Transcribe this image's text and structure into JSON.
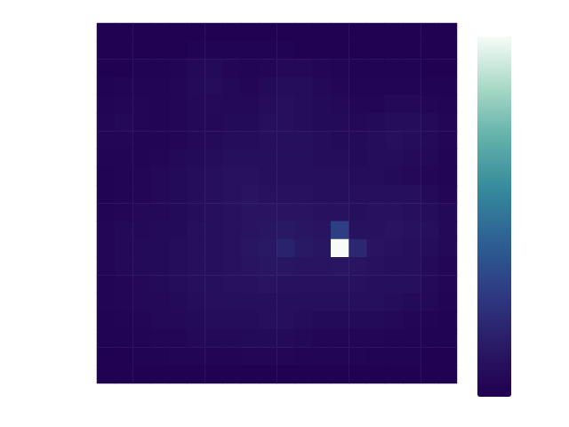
{
  "chart_data": {
    "type": "heatmap",
    "tick_labels": false,
    "color_range": [
      0,
      1
    ],
    "cells": [
      [
        0.01,
        0.01,
        0.01,
        0.01,
        0.01,
        0.01,
        0.01,
        0.01,
        0.01,
        0.01,
        0.01,
        0.01,
        0.01,
        0.01,
        0.01,
        0.01,
        0.01,
        0.01,
        0.01,
        0.01
      ],
      [
        0.01,
        0.01,
        0.01,
        0.01,
        0.01,
        0.02,
        0.02,
        0.02,
        0.02,
        0.02,
        0.02,
        0.01,
        0.01,
        0.01,
        0.01,
        0.01,
        0.01,
        0.01,
        0.01,
        0.01
      ],
      [
        0.01,
        0.01,
        0.02,
        0.02,
        0.03,
        0.05,
        0.06,
        0.04,
        0.03,
        0.04,
        0.05,
        0.05,
        0.04,
        0.03,
        0.02,
        0.02,
        0.02,
        0.02,
        0.01,
        0.01
      ],
      [
        0.02,
        0.03,
        0.03,
        0.03,
        0.04,
        0.06,
        0.07,
        0.05,
        0.04,
        0.06,
        0.07,
        0.07,
        0.05,
        0.04,
        0.03,
        0.03,
        0.03,
        0.03,
        0.02,
        0.02
      ],
      [
        0.03,
        0.04,
        0.04,
        0.03,
        0.04,
        0.05,
        0.06,
        0.05,
        0.05,
        0.07,
        0.08,
        0.07,
        0.06,
        0.05,
        0.04,
        0.04,
        0.05,
        0.05,
        0.04,
        0.03
      ],
      [
        0.04,
        0.05,
        0.04,
        0.03,
        0.04,
        0.05,
        0.05,
        0.06,
        0.06,
        0.08,
        0.08,
        0.07,
        0.06,
        0.06,
        0.05,
        0.06,
        0.07,
        0.07,
        0.06,
        0.04
      ],
      [
        0.04,
        0.04,
        0.03,
        0.03,
        0.04,
        0.05,
        0.06,
        0.07,
        0.07,
        0.08,
        0.08,
        0.08,
        0.07,
        0.06,
        0.06,
        0.07,
        0.08,
        0.07,
        0.06,
        0.04
      ],
      [
        0.03,
        0.03,
        0.03,
        0.04,
        0.05,
        0.06,
        0.07,
        0.08,
        0.09,
        0.09,
        0.08,
        0.08,
        0.07,
        0.07,
        0.06,
        0.07,
        0.07,
        0.06,
        0.05,
        0.03
      ],
      [
        0.02,
        0.03,
        0.04,
        0.05,
        0.06,
        0.07,
        0.08,
        0.1,
        0.1,
        0.09,
        0.09,
        0.09,
        0.08,
        0.08,
        0.07,
        0.07,
        0.06,
        0.05,
        0.04,
        0.03
      ],
      [
        0.02,
        0.03,
        0.04,
        0.05,
        0.06,
        0.07,
        0.09,
        0.1,
        0.11,
        0.1,
        0.1,
        0.1,
        0.09,
        0.09,
        0.08,
        0.08,
        0.09,
        0.08,
        0.06,
        0.04
      ],
      [
        0.03,
        0.04,
        0.05,
        0.05,
        0.06,
        0.07,
        0.09,
        0.1,
        0.11,
        0.11,
        0.11,
        0.11,
        0.1,
        0.1,
        0.09,
        0.1,
        0.1,
        0.09,
        0.07,
        0.05
      ],
      [
        0.04,
        0.05,
        0.05,
        0.06,
        0.06,
        0.08,
        0.09,
        0.1,
        0.11,
        0.12,
        0.13,
        0.12,
        0.11,
        0.3,
        0.1,
        0.1,
        0.11,
        0.1,
        0.08,
        0.05
      ],
      [
        0.04,
        0.05,
        0.06,
        0.06,
        0.07,
        0.08,
        0.09,
        0.1,
        0.12,
        0.13,
        0.18,
        0.13,
        0.12,
        1.0,
        0.2,
        0.11,
        0.1,
        0.09,
        0.07,
        0.05
      ],
      [
        0.04,
        0.05,
        0.06,
        0.06,
        0.07,
        0.08,
        0.09,
        0.1,
        0.11,
        0.12,
        0.12,
        0.11,
        0.11,
        0.12,
        0.11,
        0.1,
        0.09,
        0.08,
        0.06,
        0.04
      ],
      [
        0.03,
        0.04,
        0.05,
        0.06,
        0.07,
        0.08,
        0.09,
        0.1,
        0.1,
        0.11,
        0.1,
        0.1,
        0.1,
        0.1,
        0.1,
        0.09,
        0.09,
        0.08,
        0.06,
        0.04
      ],
      [
        0.03,
        0.04,
        0.05,
        0.05,
        0.06,
        0.07,
        0.08,
        0.08,
        0.09,
        0.09,
        0.09,
        0.08,
        0.08,
        0.08,
        0.08,
        0.08,
        0.07,
        0.06,
        0.05,
        0.03
      ],
      [
        0.02,
        0.03,
        0.04,
        0.05,
        0.05,
        0.06,
        0.07,
        0.07,
        0.07,
        0.08,
        0.08,
        0.07,
        0.06,
        0.06,
        0.06,
        0.06,
        0.05,
        0.04,
        0.03,
        0.02
      ],
      [
        0.02,
        0.02,
        0.03,
        0.04,
        0.04,
        0.05,
        0.05,
        0.05,
        0.06,
        0.06,
        0.06,
        0.05,
        0.04,
        0.04,
        0.04,
        0.04,
        0.03,
        0.03,
        0.02,
        0.02
      ],
      [
        0.01,
        0.01,
        0.02,
        0.02,
        0.03,
        0.03,
        0.03,
        0.03,
        0.04,
        0.04,
        0.04,
        0.03,
        0.03,
        0.03,
        0.03,
        0.02,
        0.02,
        0.02,
        0.01,
        0.01
      ],
      [
        0.01,
        0.01,
        0.01,
        0.01,
        0.01,
        0.01,
        0.01,
        0.01,
        0.01,
        0.01,
        0.01,
        0.01,
        0.01,
        0.01,
        0.01,
        0.01,
        0.01,
        0.01,
        0.01,
        0.01
      ]
    ]
  }
}
